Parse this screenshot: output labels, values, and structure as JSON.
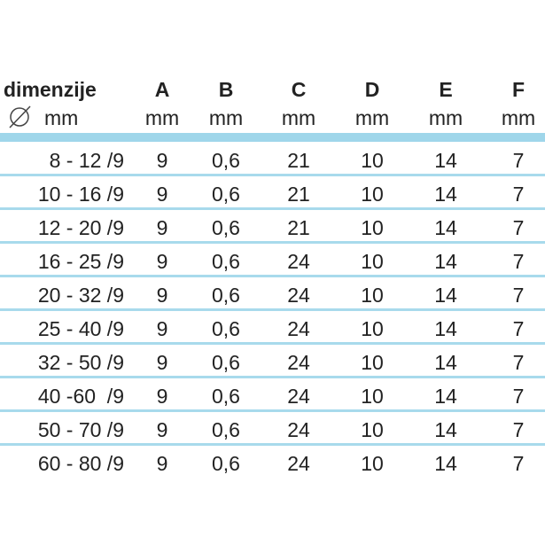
{
  "table": {
    "headers": [
      {
        "label": "dimenzije",
        "unit": "mm",
        "icon": "diameter-icon"
      },
      {
        "label": "A",
        "unit": "mm"
      },
      {
        "label": "B",
        "unit": "mm"
      },
      {
        "label": "C",
        "unit": "mm"
      },
      {
        "label": "D",
        "unit": "mm"
      },
      {
        "label": "E",
        "unit": "mm"
      },
      {
        "label": "F",
        "unit": "mm"
      }
    ],
    "rows": [
      [
        "8 - 12 /9",
        "9",
        "0,6",
        "21",
        "10",
        "14",
        "7"
      ],
      [
        "10 - 16 /9",
        "9",
        "0,6",
        "21",
        "10",
        "14",
        "7"
      ],
      [
        "12 - 20 /9",
        "9",
        "0,6",
        "21",
        "10",
        "14",
        "7"
      ],
      [
        "16 - 25 /9",
        "9",
        "0,6",
        "24",
        "10",
        "14",
        "7"
      ],
      [
        "20 - 32 /9",
        "9",
        "0,6",
        "24",
        "10",
        "14",
        "7"
      ],
      [
        "25 - 40 /9",
        "9",
        "0,6",
        "24",
        "10",
        "14",
        "7"
      ],
      [
        "32 - 50 /9",
        "9",
        "0,6",
        "24",
        "10",
        "14",
        "7"
      ],
      [
        "40 -60  /9",
        "9",
        "0,6",
        "24",
        "10",
        "14",
        "7"
      ],
      [
        "50 - 70 /9",
        "9",
        "0,6",
        "24",
        "10",
        "14",
        "7"
      ],
      [
        "60 - 80 /9",
        "9",
        "0,6",
        "24",
        "10",
        "14",
        "7"
      ]
    ]
  },
  "colors": {
    "band": "#9fd6ea",
    "separator": "#a8daec",
    "text": "#222222"
  }
}
